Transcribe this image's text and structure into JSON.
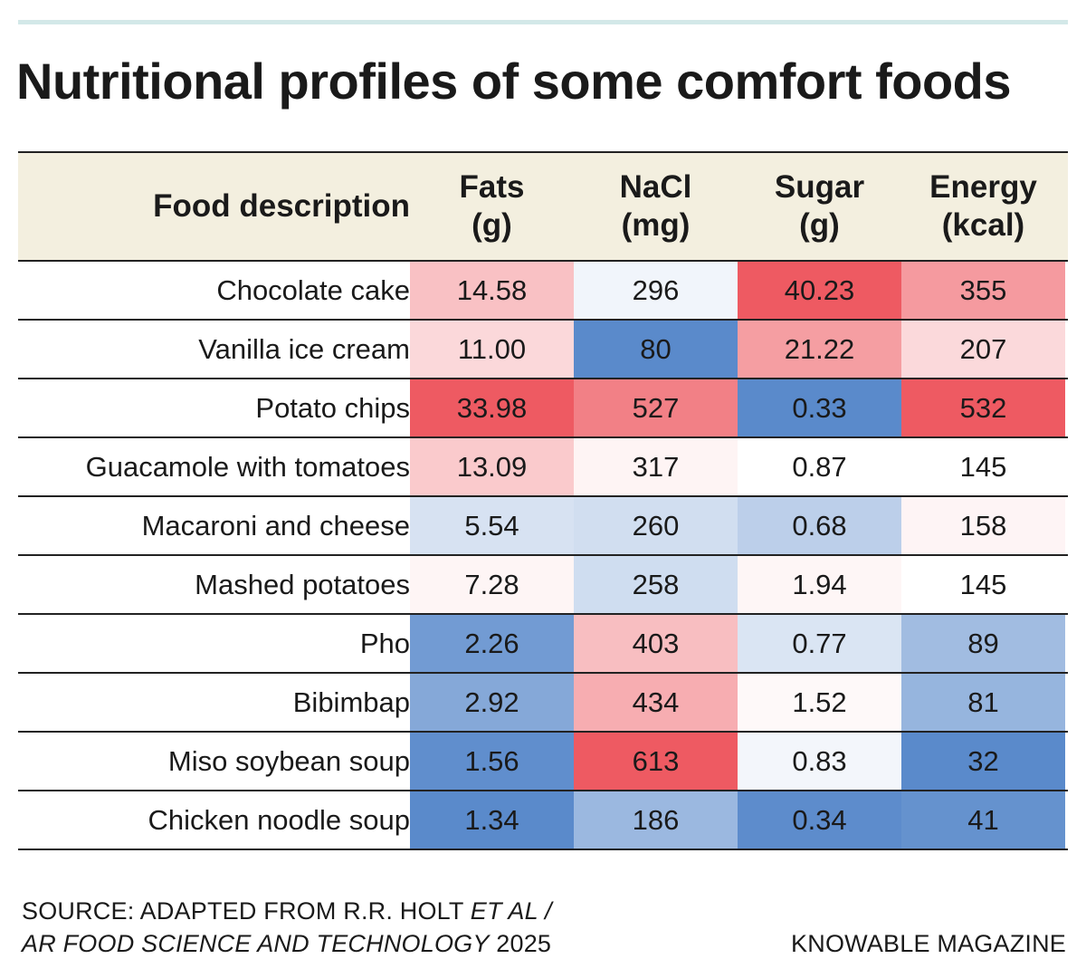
{
  "title": "Nutritional profiles of some comfort foods",
  "chart_data": {
    "type": "table",
    "columns": [
      {
        "key": "description",
        "label": "Food description"
      },
      {
        "key": "fats",
        "label1": "Fats",
        "label2": "(g)"
      },
      {
        "key": "nacl",
        "label1": "NaCl",
        "label2": "(mg)"
      },
      {
        "key": "sugar",
        "label1": "Sugar",
        "label2": "(g)"
      },
      {
        "key": "energy",
        "label1": "Energy",
        "label2": "(kcal)"
      }
    ],
    "rows": [
      {
        "description": "Chocolate cake",
        "fats": "14.58",
        "nacl": "296",
        "sugar": "40.23",
        "energy": "355"
      },
      {
        "description": "Vanilla ice cream",
        "fats": "11.00",
        "nacl": "80",
        "sugar": "21.22",
        "energy": "207"
      },
      {
        "description": "Potato chips",
        "fats": "33.98",
        "nacl": "527",
        "sugar": "0.33",
        "energy": "532"
      },
      {
        "description": "Guacamole with tomatoes",
        "fats": "13.09",
        "nacl": "317",
        "sugar": "0.87",
        "energy": "145"
      },
      {
        "description": "Macaroni and cheese",
        "fats": "5.54",
        "nacl": "260",
        "sugar": "0.68",
        "energy": "158"
      },
      {
        "description": "Mashed potatoes",
        "fats": "7.28",
        "nacl": "258",
        "sugar": "1.94",
        "energy": "145"
      },
      {
        "description": "Pho",
        "fats": "2.26",
        "nacl": "403",
        "sugar": "0.77",
        "energy": "89"
      },
      {
        "description": "Bibimbap",
        "fats": "2.92",
        "nacl": "434",
        "sugar": "1.52",
        "energy": "81"
      },
      {
        "description": "Miso soybean soup",
        "fats": "1.56",
        "nacl": "613",
        "sugar": "0.83",
        "energy": "32"
      },
      {
        "description": "Chicken noodle soup",
        "fats": "1.34",
        "nacl": "186",
        "sugar": "0.34",
        "energy": "41"
      }
    ],
    "colors": {
      "high": "#ee5a62",
      "mid": "#ffffff",
      "low": "#5a8acb",
      "header_bg": "#f3efdf"
    }
  },
  "source": {
    "line1_plain": "SOURCE: ADAPTED FROM R.R. HOLT ",
    "line1_italic": "ET AL /",
    "line2_italic": "AR FOOD SCIENCE AND TECHNOLOGY",
    "line2_plain": " 2025"
  },
  "credit": "KNOWABLE MAGAZINE"
}
